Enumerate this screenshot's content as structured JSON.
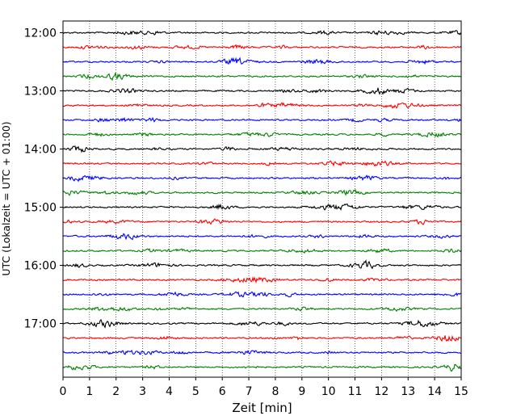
{
  "chart_data": {
    "type": "line",
    "title": "",
    "xlabel": "Zeit  [min]",
    "ylabel": "UTC (Lokalzeit = UTC + 01:00)",
    "xlim": [
      0,
      15
    ],
    "x_ticks": [
      "0",
      "1",
      "2",
      "3",
      "4",
      "5",
      "6",
      "7",
      "8",
      "9",
      "10",
      "11",
      "12",
      "13",
      "14",
      "15"
    ],
    "y_ticks": [
      "12:00",
      "13:00",
      "14:00",
      "15:00",
      "16:00",
      "17:00"
    ],
    "grid": "vertical-dotted",
    "trace_colors": [
      "#000000",
      "#ff0000",
      "#0000ff",
      "#008000"
    ],
    "trace_start_times": [
      "12:00",
      "12:15",
      "12:30",
      "12:45",
      "13:00",
      "13:15",
      "13:30",
      "13:45",
      "14:00",
      "14:15",
      "14:30",
      "14:45",
      "15:00",
      "15:15",
      "15:30",
      "15:45",
      "16:00",
      "16:15",
      "16:30",
      "16:45",
      "17:00",
      "17:15",
      "17:30",
      "17:45"
    ],
    "trace_minutes_each": 15,
    "signal_note": "seismic helicorder noise traces"
  }
}
